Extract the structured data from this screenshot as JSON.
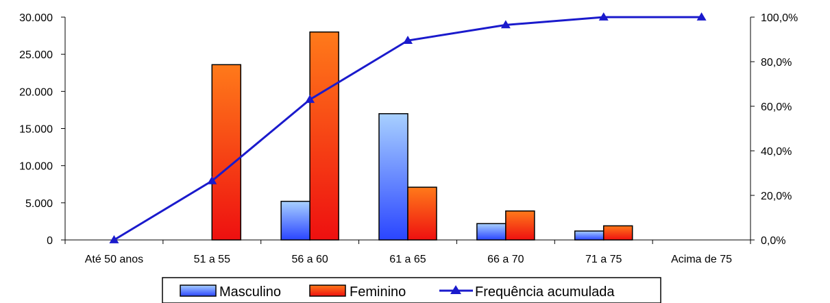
{
  "chart_data": {
    "type": "bar",
    "categories": [
      "Até 50 anos",
      "51 a 55",
      "56 a 60",
      "61 a 65",
      "66 a 70",
      "71 a 75",
      "Acima de 75"
    ],
    "series": [
      {
        "name": "Masculino",
        "type": "bar",
        "axis": "left",
        "values": [
          0,
          0,
          5200,
          17000,
          2200,
          1200,
          0
        ],
        "color_top": "#a8d0ff",
        "color_bottom": "#2a45ff"
      },
      {
        "name": "Feminino",
        "type": "bar",
        "axis": "left",
        "values": [
          0,
          23600,
          28000,
          7100,
          3900,
          1900,
          0
        ],
        "color_top": "#ff7a1a",
        "color_bottom": "#ee1010"
      },
      {
        "name": "Frequência acumulada",
        "type": "line",
        "axis": "right",
        "values": [
          0.0,
          26.5,
          63.0,
          89.5,
          96.5,
          100.0,
          100.0
        ],
        "color": "#1a1acc",
        "marker": "triangle"
      }
    ],
    "y_left": {
      "ticks": [
        "0",
        "5.000",
        "10.000",
        "15.000",
        "20.000",
        "25.000",
        "30.000"
      ],
      "ylim": [
        0,
        30000
      ]
    },
    "y_right": {
      "ticks": [
        "0,0%",
        "20,0%",
        "40,0%",
        "60,0%",
        "80,0%",
        "100,0%"
      ],
      "ylim": [
        0,
        100
      ]
    },
    "grid": false,
    "legend_position": "bottom-center",
    "title": "",
    "xlabel": "",
    "ylabel": ""
  }
}
